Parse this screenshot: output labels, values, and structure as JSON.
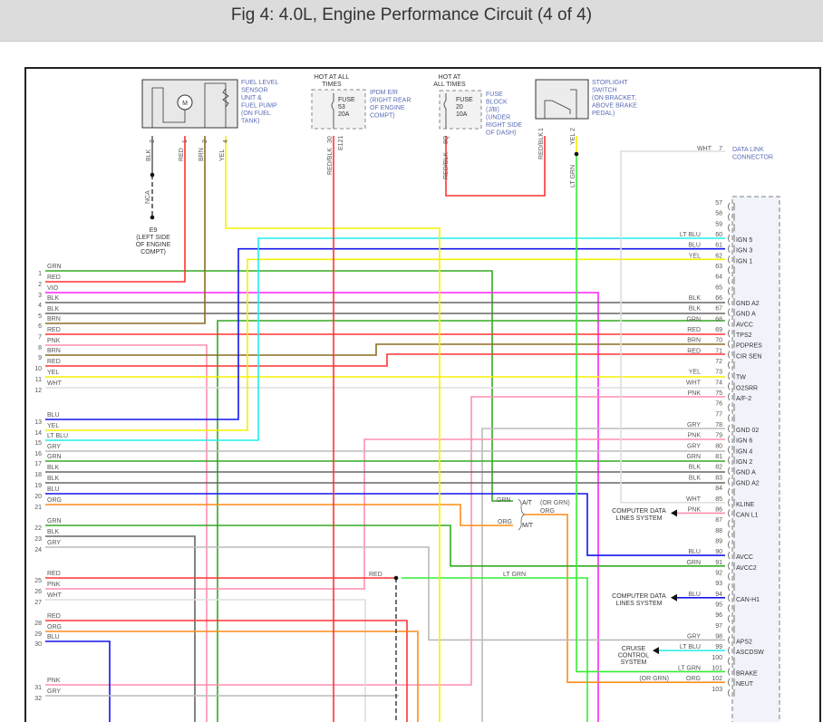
{
  "title": "Fig 4: 4.0L, Engine Performance Circuit (4 of 4)",
  "wire_colors": {
    "GRN": "#33aa22",
    "RED": "#ff3333",
    "VIO": "#ff22ff",
    "BLK": "#666666",
    "BRN": "#8b6d23",
    "PNK": "#ff8fae",
    "YEL": "#f6f000",
    "WHT": "#dddddd",
    "BLU": "#1414ee",
    "LT BLU": "#22eeee",
    "GRY": "#bbbbbb",
    "ORG": "#ff8c1a",
    "LT GRN": "#33ee33",
    "RED/BLK": "#ff3333"
  },
  "components": {
    "fuel_pump": {
      "label": [
        "FUEL LEVEL",
        "SENSOR",
        "UNIT &",
        "FUEL PUMP",
        "(ON FUEL",
        "TANK)"
      ],
      "pins": [
        {
          "pin": "3",
          "wire": "BLK"
        },
        {
          "pin": "1",
          "wire": "RED"
        },
        {
          "pin": "2",
          "wire": "BRN"
        },
        {
          "pin": "4",
          "wire": "YEL"
        }
      ],
      "motor_symbol": "M",
      "ground_splice": "NCA",
      "ground": [
        "E9",
        "(LEFT SIDE",
        "OF ENGINE",
        "COMPT)"
      ]
    },
    "fuse53": {
      "hot": [
        "HOT AT ALL",
        "TIMES"
      ],
      "fuse": [
        "FUSE",
        "53",
        "20A"
      ],
      "label": [
        "IPDM E/R",
        "(RIGHT REAR",
        "OF ENGINE",
        "COMPT)"
      ],
      "pin": "30",
      "connector": "E121",
      "wire": "RED/BLK"
    },
    "fuse20": {
      "hot": [
        "HOT AT",
        "ALL TIMES"
      ],
      "fuse": [
        "FUSE",
        "20",
        "10A"
      ],
      "label": [
        "FUSE",
        "BLOCK",
        "(J/B)",
        "(UNDER",
        "RIGHT SIDE",
        "OF DASH)"
      ],
      "pin": "8Q",
      "wire": "RED/BLK"
    },
    "stoplight": {
      "label": [
        "STOPLIGHT",
        "SWITCH",
        "(ON BRACKET,",
        "ABOVE BRAKE",
        "PEDAL)"
      ],
      "pins": [
        {
          "pin": "1",
          "wire": "RED/BLK"
        },
        {
          "pin": "2",
          "wire": "YEL"
        }
      ],
      "out_wire": "LT GRN"
    },
    "dlc": {
      "label": [
        "DATA LINK",
        "CONNECTOR"
      ],
      "pin": "7",
      "wire": "WHT"
    }
  },
  "left_pins": [
    {
      "pin": "1",
      "wire": "GRN"
    },
    {
      "pin": "2",
      "wire": "RED"
    },
    {
      "pin": "3",
      "wire": "VIO"
    },
    {
      "pin": "4",
      "wire": "BLK"
    },
    {
      "pin": "5",
      "wire": "BLK"
    },
    {
      "pin": "6",
      "wire": "BRN"
    },
    {
      "pin": "7",
      "wire": "RED"
    },
    {
      "pin": "8",
      "wire": "PNK"
    },
    {
      "pin": "9",
      "wire": "BRN"
    },
    {
      "pin": "10",
      "wire": "RED"
    },
    {
      "pin": "11",
      "wire": "YEL"
    },
    {
      "pin": "12",
      "wire": "WHT"
    },
    {
      "pin": "13",
      "wire": "BLU"
    },
    {
      "pin": "14",
      "wire": "YEL"
    },
    {
      "pin": "15",
      "wire": "LT BLU"
    },
    {
      "pin": "16",
      "wire": "GRY"
    },
    {
      "pin": "17",
      "wire": "GRN"
    },
    {
      "pin": "18",
      "wire": "BLK"
    },
    {
      "pin": "19",
      "wire": "BLK"
    },
    {
      "pin": "20",
      "wire": "BLU"
    },
    {
      "pin": "21",
      "wire": "ORG"
    },
    {
      "pin": "22",
      "wire": "GRN"
    },
    {
      "pin": "23",
      "wire": "BLK"
    },
    {
      "pin": "24",
      "wire": "GRY"
    },
    {
      "pin": "25",
      "wire": "RED"
    },
    {
      "pin": "26",
      "wire": "PNK"
    },
    {
      "pin": "27",
      "wire": "WHT"
    },
    {
      "pin": "28",
      "wire": "RED"
    },
    {
      "pin": "29",
      "wire": "ORG"
    },
    {
      "pin": "30",
      "wire": "BLU"
    },
    {
      "pin": "31",
      "wire": "PNK"
    },
    {
      "pin": "32",
      "wire": "GRY"
    }
  ],
  "right_pins": [
    {
      "pin": "57"
    },
    {
      "pin": "58"
    },
    {
      "pin": "59"
    },
    {
      "pin": "60",
      "wire": "LT BLU",
      "func": "IGN 5"
    },
    {
      "pin": "61",
      "wire": "BLU",
      "func": "IGN 3"
    },
    {
      "pin": "62",
      "wire": "YEL",
      "func": "IGN 1"
    },
    {
      "pin": "63"
    },
    {
      "pin": "64"
    },
    {
      "pin": "65"
    },
    {
      "pin": "66",
      "wire": "BLK",
      "func": "GND A2"
    },
    {
      "pin": "67",
      "wire": "BLK",
      "func": "GND A"
    },
    {
      "pin": "68",
      "wire": "GRN",
      "func": "AVCC"
    },
    {
      "pin": "69",
      "wire": "RED",
      "func": "TPS2"
    },
    {
      "pin": "70",
      "wire": "BRN",
      "func": "PDPRES"
    },
    {
      "pin": "71",
      "wire": "RED",
      "func": "CIR SEN"
    },
    {
      "pin": "72"
    },
    {
      "pin": "73",
      "wire": "YEL",
      "func": "TW"
    },
    {
      "pin": "74",
      "wire": "WHT",
      "func": "O2SRR"
    },
    {
      "pin": "75",
      "wire": "PNK",
      "func": "A/F-2"
    },
    {
      "pin": "76"
    },
    {
      "pin": "77"
    },
    {
      "pin": "78",
      "wire": "GRY",
      "func": "GND 02"
    },
    {
      "pin": "79",
      "wire": "PNK",
      "func": "IGN 6"
    },
    {
      "pin": "80",
      "wire": "GRY",
      "func": "IGN 4"
    },
    {
      "pin": "81",
      "wire": "GRN",
      "func": "IGN 2"
    },
    {
      "pin": "82",
      "wire": "BLK",
      "func": "GND A"
    },
    {
      "pin": "83",
      "wire": "BLK",
      "func": "GND A2"
    },
    {
      "pin": "84"
    },
    {
      "pin": "85",
      "wire": "WHT",
      "func": "KLINE"
    },
    {
      "pin": "86",
      "wire": "PNK",
      "func": "CAN L1"
    },
    {
      "pin": "87"
    },
    {
      "pin": "88"
    },
    {
      "pin": "89"
    },
    {
      "pin": "90",
      "wire": "BLU",
      "func": "AVCC"
    },
    {
      "pin": "91",
      "wire": "GRN",
      "func": "AVCC2"
    },
    {
      "pin": "92"
    },
    {
      "pin": "93"
    },
    {
      "pin": "94",
      "wire": "BLU",
      "func": "CAN-H1"
    },
    {
      "pin": "95"
    },
    {
      "pin": "96"
    },
    {
      "pin": "97"
    },
    {
      "pin": "98",
      "wire": "GRY",
      "func": "APS2"
    },
    {
      "pin": "99",
      "wire": "LT BLU",
      "func": "ASCDSW"
    },
    {
      "pin": "100"
    },
    {
      "pin": "101",
      "wire": "LT GRN",
      "func": "BRAKE"
    },
    {
      "pin": "102",
      "wire": "ORG",
      "func": "NEUT",
      "alt": "(OR GRN)"
    },
    {
      "pin": "103"
    }
  ],
  "destinations": {
    "can_l1": [
      "COMPUTER DATA",
      "LINES SYSTEM"
    ],
    "can_h1": [
      "COMPUTER DATA",
      "LINES SYSTEM"
    ],
    "cruise": [
      "CRUISE",
      "CONTROL",
      "SYSTEM"
    ]
  },
  "transmission_option": {
    "at": "A/T",
    "mt": "M/T",
    "at_wire": "GRN",
    "mt_wire": "ORG",
    "out_alt": "(OR GRN)",
    "out_wire": "ORG"
  },
  "splice_label": {
    "in": "RED",
    "out": "LT GRN"
  }
}
